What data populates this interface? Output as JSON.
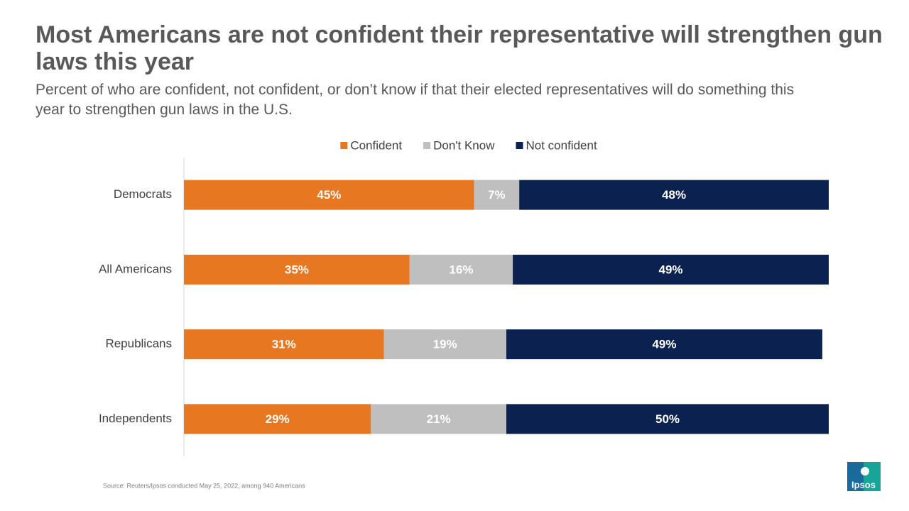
{
  "chart_data": {
    "type": "stacked-bar-horizontal",
    "title": "Most Americans are not confident their representative will strengthen gun laws this year",
    "subtitle": "Percent of who are confident, not confident, or don’t know if that their elected representatives will do something this year to strengthen gun laws in the U.S.",
    "categories": [
      "Democrats",
      "All Americans",
      "Republicans",
      "Independents"
    ],
    "series": [
      {
        "name": "Confident",
        "color": "#e87722",
        "values": [
          45,
          35,
          31,
          29
        ],
        "value_labels": [
          "45%",
          "35%",
          "31%",
          "29%"
        ]
      },
      {
        "name": "Don't Know",
        "color": "#bfbfbf",
        "values": [
          7,
          16,
          19,
          21
        ],
        "value_labels": [
          "7%",
          "16%",
          "19%",
          "21%"
        ]
      },
      {
        "name": "Not confident",
        "color": "#0b2251",
        "values": [
          48,
          49,
          49,
          50
        ],
        "value_labels": [
          "48%",
          "49%",
          "49%",
          "50%"
        ]
      }
    ],
    "xlim": [
      0,
      100
    ],
    "legend": "top",
    "source": "Source: Reuters/Ipsos conducted May 25, 2022, among 940 Americans",
    "logo": "Ipsos"
  }
}
